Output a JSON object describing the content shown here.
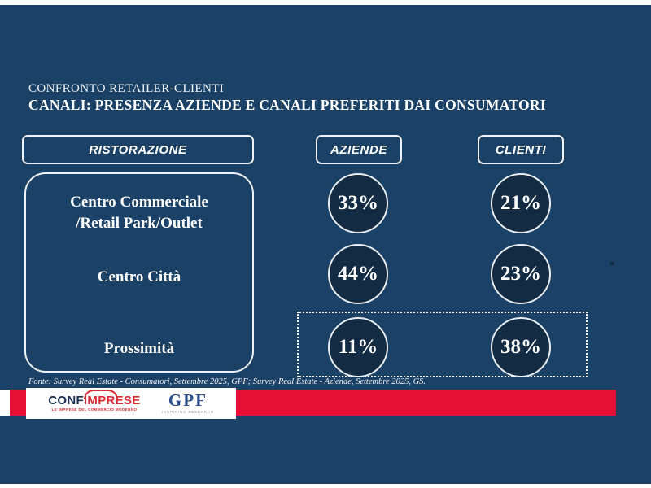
{
  "slide": {
    "kicker": "CONFRONTO RETAILER-CLIENTI",
    "title": "CANALI: PRESENZA AZIENDE E CANALI PREFERITI DAI CONSUMATORI",
    "category_header": "RISTORAZIONE",
    "column_headers": {
      "aziende": "AZIENDE",
      "clienti": "CLIENTI"
    },
    "footnote_marker": "*",
    "source": "Fonte: Survey Real Estate - Consumatori, Settembre 2025, GPF; Survey Real Estate - Aziende, Settembre 2025, GS."
  },
  "rows": [
    {
      "lines": {
        "0": "Centro Commerciale",
        "1": "/Retail Park/Outlet"
      },
      "aziende": "33%",
      "clienti": "21%"
    },
    {
      "lines": {
        "0": "Centro Città"
      },
      "aziende": "44%",
      "clienti": "23%"
    },
    {
      "lines": {
        "0": "Prossimità"
      },
      "aziende": "11%",
      "clienti": "38%"
    }
  ],
  "chart_data": {
    "type": "table",
    "title": "CANALI: PRESENZA AZIENDE E CANALI PREFERITI DAI CONSUMATORI",
    "subtitle": "CONFRONTO RETAILER-CLIENTI",
    "category_group": "RISTORAZIONE",
    "categories": [
      "Centro Commerciale /Retail Park/Outlet",
      "Centro Città",
      "Prossimità"
    ],
    "series": [
      {
        "name": "AZIENDE",
        "values": [
          33,
          44,
          11
        ]
      },
      {
        "name": "CLIENTI",
        "values": [
          21,
          23,
          38
        ]
      }
    ],
    "unit": "%",
    "highlighted_row": "Prossimità",
    "source": "Fonte: Survey Real Estate - Consumatori, Settembre 2025, GPF; Survey Real Estate - Aziende, Settembre 2025, GS."
  },
  "footer": {
    "confimprese": {
      "prefix": "CONF",
      "suffix": "IMPRESE",
      "tagline": "LE IMPRESE DEL COMMERCIO MODERNO"
    },
    "gpf": {
      "word": "GPF",
      "tagline": "INSPIRING RESEARCH"
    }
  },
  "colors": {
    "background_navy": "#1b4266",
    "circle_fill": "#132c44",
    "accent_red": "#e60f35",
    "text_white": "#ffffff",
    "confimprese_navy": "#1b2f52",
    "confimprese_red": "#d92b35",
    "gpf_blue": "#2b4f8e"
  }
}
